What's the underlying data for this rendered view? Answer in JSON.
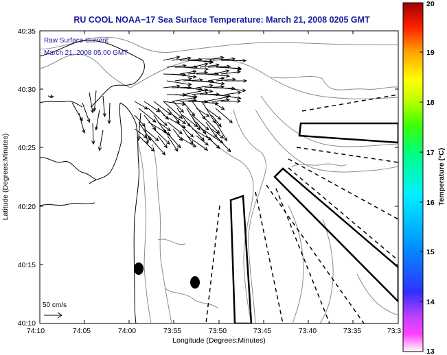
{
  "title": "RU COOL  NOAA−17  Sea Surface Temperature:  March 21, 2008 0205 GMT",
  "legend": {
    "line1": "Raw Surface Current:",
    "line2": "March 21, 2008 05:00 GMT"
  },
  "scale_label": "50 cm/s",
  "axes": {
    "xlabel": "Longitude (Degrees:Minutes)",
    "ylabel": "Latitude (Degrees:Minutes)",
    "xticks": [
      "74:10",
      "74:05",
      "74:00",
      "73:55",
      "73:50",
      "73:45",
      "73:40",
      "73:35",
      "73:3"
    ],
    "yticks": [
      "40:35",
      "40:30",
      "40:25",
      "40:20",
      "40:15",
      "40:10"
    ]
  },
  "colorbar": {
    "label": "Temperature (°C)",
    "ticks": [
      "20",
      "19",
      "18",
      "17",
      "16",
      "15",
      "14",
      "13"
    ],
    "min": 13,
    "max": 20
  },
  "colors": {
    "title": "#1a1aa0",
    "legend_text": "#1a1aa0",
    "land": "#ffffff",
    "contour": "#888888",
    "coast": "#000000"
  }
}
